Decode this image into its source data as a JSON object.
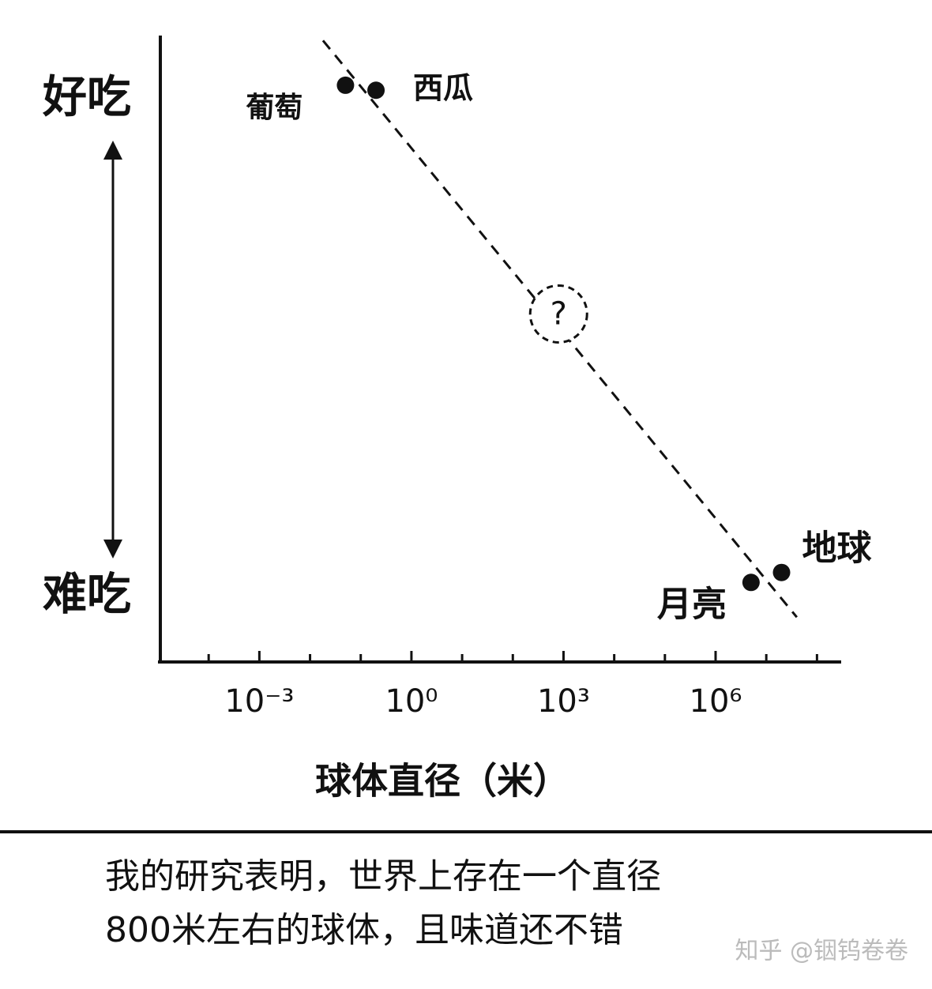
{
  "chart_data": {
    "type": "scatter",
    "x_label": "球体直径（米）",
    "xscale": "log",
    "xlim": [
      1e-05,
      300000000
    ],
    "xticks": [
      {
        "value": 0.001,
        "label": "10⁻³"
      },
      {
        "value": 1,
        "label": "10⁰"
      },
      {
        "value": 1000,
        "label": "10³"
      },
      {
        "value": 1000000,
        "label": "10⁶"
      }
    ],
    "xminorticks": [
      0.0001,
      0.01,
      0.1,
      10,
      100,
      10000,
      100000,
      10000000,
      100000000
    ],
    "ylim": [
      -1.3,
      11.3
    ],
    "yticks": [
      {
        "value": 10,
        "label": "好吃"
      },
      {
        "value": 0,
        "label": "难吃"
      }
    ],
    "color": "#111111",
    "points": [
      {
        "label": "葡萄",
        "x": 0.05,
        "y": 10.3
      },
      {
        "label": "西瓜",
        "x": 0.2,
        "y": 10.2
      },
      {
        "label": "月亮",
        "x": 5000000,
        "y": 0.3
      },
      {
        "label": "地球",
        "x": 20000000,
        "y": 0.5
      }
    ],
    "trendline": {
      "x": [
        0.018,
        40000000
      ],
      "y": [
        11.2,
        -0.4
      ]
    },
    "annotation": {
      "text": "?",
      "x": 800,
      "y": 5.7
    }
  },
  "caption": [
    "我的研究表明，世界上存在一个直径",
    "800米左右的球体，且味道还不错"
  ],
  "watermark": "知乎 @铟钨卷卷"
}
